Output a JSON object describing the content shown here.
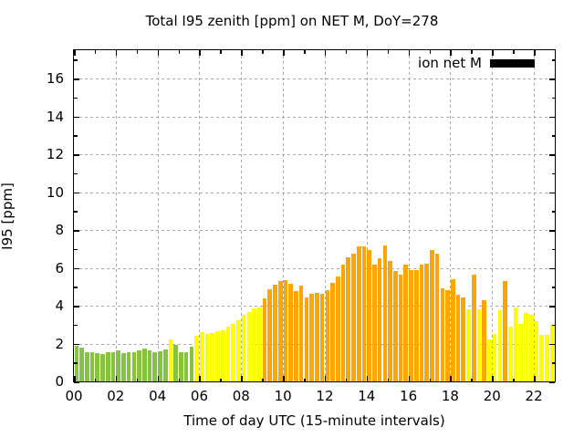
{
  "title": "Total I95 zenith [ppm] on NET M, DoY=278",
  "legend": {
    "label": "ion net M",
    "swatch_color": "#000000"
  },
  "axes": {
    "x_label": "Time of day UTC (15-minute intervals)",
    "y_label": "I95 [ppm]",
    "x_ticks": [
      {
        "label": "00",
        "hour": 0
      },
      {
        "label": "02",
        "hour": 2
      },
      {
        "label": "04",
        "hour": 4
      },
      {
        "label": "06",
        "hour": 6
      },
      {
        "label": "08",
        "hour": 8
      },
      {
        "label": "10",
        "hour": 10
      },
      {
        "label": "12",
        "hour": 12
      },
      {
        "label": "14",
        "hour": 14
      },
      {
        "label": "16",
        "hour": 16
      },
      {
        "label": "18",
        "hour": 18
      },
      {
        "label": "20",
        "hour": 20
      },
      {
        "label": "22",
        "hour": 22
      }
    ],
    "x_minor_hours": [
      1,
      3,
      5,
      7,
      9,
      11,
      13,
      15,
      17,
      19,
      21
    ],
    "y_ticks": [
      {
        "label": "0",
        "value": 0
      },
      {
        "label": "2",
        "value": 2
      },
      {
        "label": "4",
        "value": 4
      },
      {
        "label": "6",
        "value": 6
      },
      {
        "label": "8",
        "value": 8
      },
      {
        "label": "10",
        "value": 10
      },
      {
        "label": "12",
        "value": 12
      },
      {
        "label": "14",
        "value": 14
      },
      {
        "label": "16",
        "value": 16
      }
    ],
    "y_minor_values": [
      1,
      3,
      5,
      7,
      9,
      11,
      13,
      15,
      17
    ]
  },
  "chart_data": {
    "type": "bar",
    "title": "Total I95 zenith [ppm] on NET M, DoY=278",
    "xlabel": "Time of day UTC (15-minute intervals)",
    "ylabel": "I95 [ppm]",
    "x_range_hours": [
      0,
      23
    ],
    "ylim": [
      0,
      17.5
    ],
    "grid": true,
    "interval_minutes": 15,
    "legend": {
      "label": "ion net M",
      "position": "top-right-inside",
      "swatch_color": "#000000"
    },
    "color_thresholds": {
      "green_below": 2.0,
      "orange_at_or_above": 4.0
    },
    "colors": {
      "green": "#86c440",
      "yellow": "#ffff00",
      "orange": "#ffa500"
    },
    "times": [
      "00:00",
      "00:15",
      "00:30",
      "00:45",
      "01:00",
      "01:15",
      "01:30",
      "01:45",
      "02:00",
      "02:15",
      "02:30",
      "02:45",
      "03:00",
      "03:15",
      "03:30",
      "03:45",
      "04:00",
      "04:15",
      "04:30",
      "04:45",
      "05:00",
      "05:15",
      "05:30",
      "05:45",
      "06:00",
      "06:15",
      "06:30",
      "06:45",
      "07:00",
      "07:15",
      "07:30",
      "07:45",
      "08:00",
      "08:15",
      "08:30",
      "08:45",
      "09:00",
      "09:15",
      "09:30",
      "09:45",
      "10:00",
      "10:15",
      "10:30",
      "10:45",
      "11:00",
      "11:15",
      "11:30",
      "11:45",
      "12:00",
      "12:15",
      "12:30",
      "12:45",
      "13:00",
      "13:15",
      "13:30",
      "13:45",
      "14:00",
      "14:15",
      "14:30",
      "14:45",
      "15:00",
      "15:15",
      "15:30",
      "15:45",
      "16:00",
      "16:15",
      "16:30",
      "16:45",
      "17:00",
      "17:15",
      "17:30",
      "17:45",
      "18:00",
      "18:15",
      "18:30",
      "18:45",
      "19:00",
      "19:15",
      "19:30",
      "19:45",
      "20:00",
      "20:15",
      "20:30",
      "20:45",
      "21:00",
      "21:15",
      "21:30",
      "21:45",
      "22:00",
      "22:15",
      "22:30",
      "22:45"
    ],
    "values": [
      1.9,
      1.8,
      1.55,
      1.55,
      1.5,
      1.45,
      1.55,
      1.55,
      1.65,
      1.5,
      1.55,
      1.55,
      1.65,
      1.75,
      1.65,
      1.55,
      1.6,
      1.7,
      2.2,
      1.95,
      1.55,
      1.55,
      1.85,
      2.4,
      2.6,
      2.5,
      2.55,
      2.65,
      2.7,
      2.9,
      3.05,
      3.25,
      3.5,
      3.65,
      3.85,
      3.9,
      4.4,
      4.85,
      5.1,
      5.3,
      5.35,
      5.15,
      4.75,
      5.05,
      4.45,
      4.65,
      4.7,
      4.65,
      4.8,
      5.2,
      5.55,
      6.15,
      6.55,
      6.75,
      7.15,
      7.15,
      6.95,
      6.15,
      6.5,
      7.2,
      6.35,
      5.85,
      5.65,
      6.15,
      5.9,
      5.9,
      6.15,
      6.2,
      6.95,
      6.75,
      4.9,
      4.8,
      5.4,
      4.6,
      4.45,
      3.8,
      5.65,
      3.8,
      4.3,
      2.2,
      2.5,
      3.75,
      5.3,
      2.9,
      3.9,
      3.05,
      3.6,
      3.5,
      3.2,
      2.45,
      2.45,
      3.0
    ]
  }
}
